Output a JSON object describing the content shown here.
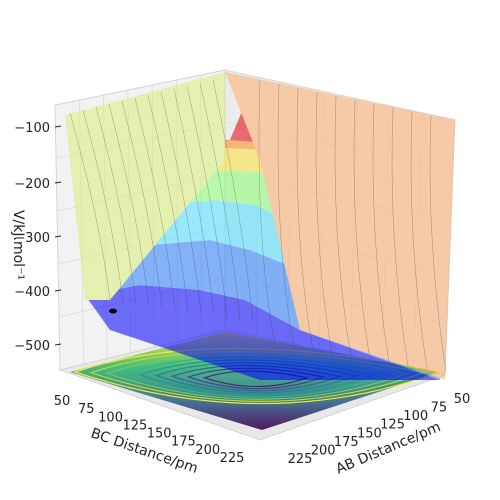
{
  "chart_data": {
    "type": "surface3d",
    "title": "",
    "xlabel": "AB Distance/pm",
    "ylabel": "BC Distance/pm",
    "zlabel": "V/kJ.mol⁻¹",
    "x_ticks": [
      "50",
      "75",
      "100",
      "125",
      "150",
      "175",
      "200",
      "225"
    ],
    "y_ticks": [
      "50",
      "75",
      "100",
      "125",
      "150",
      "175",
      "200",
      "225"
    ],
    "z_ticks": [
      "−100",
      "−200",
      "−300",
      "−400",
      "−500"
    ],
    "x_range": [
      50,
      230
    ],
    "y_range": [
      50,
      230
    ],
    "z_range": [
      -560,
      -70
    ],
    "surface": {
      "description_values_kJ_per_mol": {
        "plateau_minimum": -430,
        "saddle_region": -390,
        "short_distance_max": -70
      }
    },
    "trajectory_start": {
      "ab": 225,
      "bc": 74,
      "v": -430
    },
    "contour_projection": true,
    "colormap_surface": "jet",
    "colormap_contour": "viridis",
    "grid": true
  }
}
